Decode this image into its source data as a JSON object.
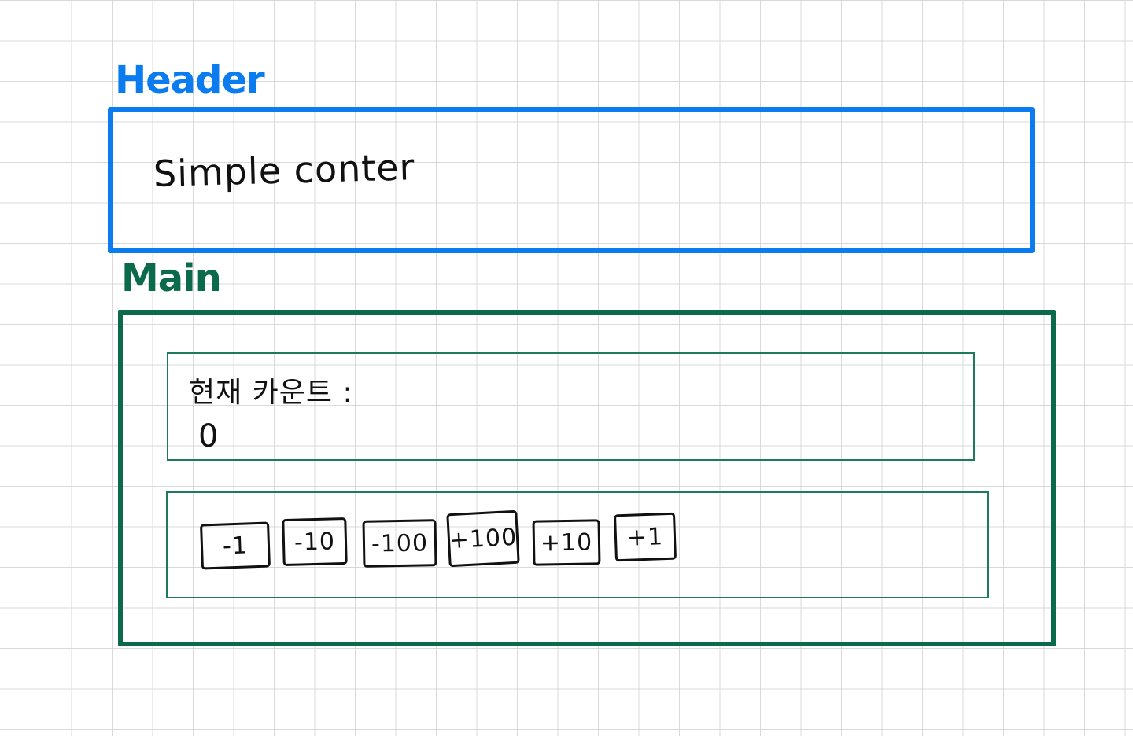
{
  "labels": {
    "header": "Header",
    "main": "Main"
  },
  "header": {
    "title": "Simple conter"
  },
  "counter": {
    "label": "현재 카운트 :",
    "value": "0"
  },
  "buttons": [
    {
      "label": "-1"
    },
    {
      "label": "-10"
    },
    {
      "label": "-100"
    },
    {
      "label": "+100"
    },
    {
      "label": "+10"
    },
    {
      "label": "+1"
    }
  ],
  "colors": {
    "header_outline": "#0a7cf0",
    "main_outline": "#0c6a4c",
    "grid": "#d9d9d9"
  }
}
